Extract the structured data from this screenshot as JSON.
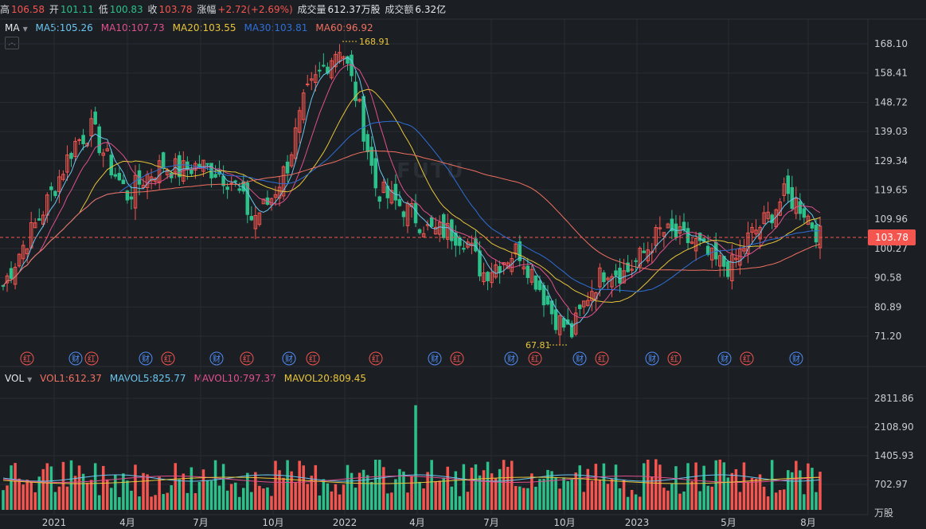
{
  "quote": {
    "high_label": "高",
    "high": "106.58",
    "open_label": "开",
    "open": "101.11",
    "low_label": "低",
    "low": "100.83",
    "close_label": "收",
    "close": "103.78",
    "change_label": "涨幅",
    "change": "+2.72(+2.69%)",
    "volume_label": "成交量",
    "volume": "612.37万股",
    "turnover_label": "成交额",
    "turnover": "6.32亿"
  },
  "ma_legend": {
    "mode": "MA",
    "items": [
      {
        "text": "MA5:105.26",
        "color": "#6ac6f0"
      },
      {
        "text": "MA10:107.73",
        "color": "#e0508e"
      },
      {
        "text": "MA20:103.55",
        "color": "#e8c53a"
      },
      {
        "text": "MA30:103.81",
        "color": "#2f6fd6"
      },
      {
        "text": "MA60:96.92",
        "color": "#f07060"
      }
    ]
  },
  "vol_legend": {
    "mode": "VOL",
    "items": [
      {
        "text": "VOL1:612.37",
        "color": "#f07060"
      },
      {
        "text": "MAVOL5:825.77",
        "color": "#6ac6f0"
      },
      {
        "text": "MAVOL10:797.37",
        "color": "#e0508e"
      },
      {
        "text": "MAVOL20:809.45",
        "color": "#e8c53a"
      }
    ]
  },
  "price_axis": [
    "168.10",
    "158.41",
    "148.72",
    "139.03",
    "129.34",
    "119.65",
    "109.96",
    "100.27",
    "90.58",
    "80.89",
    "71.20"
  ],
  "vol_axis": [
    "2811.86",
    "2108.90",
    "1405.93",
    "702.97"
  ],
  "vol_unit": "万股",
  "x_axis": [
    "2021",
    "4月",
    "7月",
    "10月",
    "2022",
    "4月",
    "7月",
    "10月",
    "2023",
    "5月",
    "8月"
  ],
  "current_price": "103.78",
  "max_annotation": "168.91",
  "min_annotation": "67.81",
  "event_markers": [
    {
      "text": "红",
      "type": "dividend"
    },
    {
      "text": "财",
      "type": "report"
    },
    {
      "text": "红",
      "type": "dividend"
    },
    {
      "text": "财",
      "type": "report"
    },
    {
      "text": "红",
      "type": "dividend"
    },
    {
      "text": "财",
      "type": "report"
    },
    {
      "text": "红",
      "type": "dividend"
    },
    {
      "text": "财",
      "type": "report"
    },
    {
      "text": "红",
      "type": "dividend"
    },
    {
      "text": "红",
      "type": "dividend"
    },
    {
      "text": "财",
      "type": "report"
    },
    {
      "text": "红",
      "type": "dividend"
    },
    {
      "text": "财",
      "type": "report"
    },
    {
      "text": "红",
      "type": "dividend"
    },
    {
      "text": "财",
      "type": "report"
    },
    {
      "text": "红",
      "type": "dividend"
    },
    {
      "text": "财",
      "type": "report"
    },
    {
      "text": "红",
      "type": "dividend"
    },
    {
      "text": "财",
      "type": "report"
    },
    {
      "text": "红",
      "type": "dividend"
    },
    {
      "text": "财",
      "type": "report"
    }
  ],
  "colors": {
    "up": "#f4554f",
    "down": "#2cc08a",
    "bg": "#1b1e23",
    "grid": "#2a2e35"
  },
  "chart_data": {
    "type": "candlestick",
    "approximate_closes": [
      88,
      100,
      110,
      122,
      135,
      140,
      128,
      118,
      124,
      128,
      126,
      128,
      126,
      122,
      110,
      116,
      128,
      150,
      160,
      168,
      148,
      120,
      116,
      112,
      106,
      106,
      104,
      92,
      96,
      100,
      90,
      78,
      72,
      86,
      94,
      92,
      98,
      106,
      104,
      102,
      96,
      94,
      104,
      110,
      118,
      114,
      104
    ],
    "y_range": [
      65,
      172
    ]
  }
}
